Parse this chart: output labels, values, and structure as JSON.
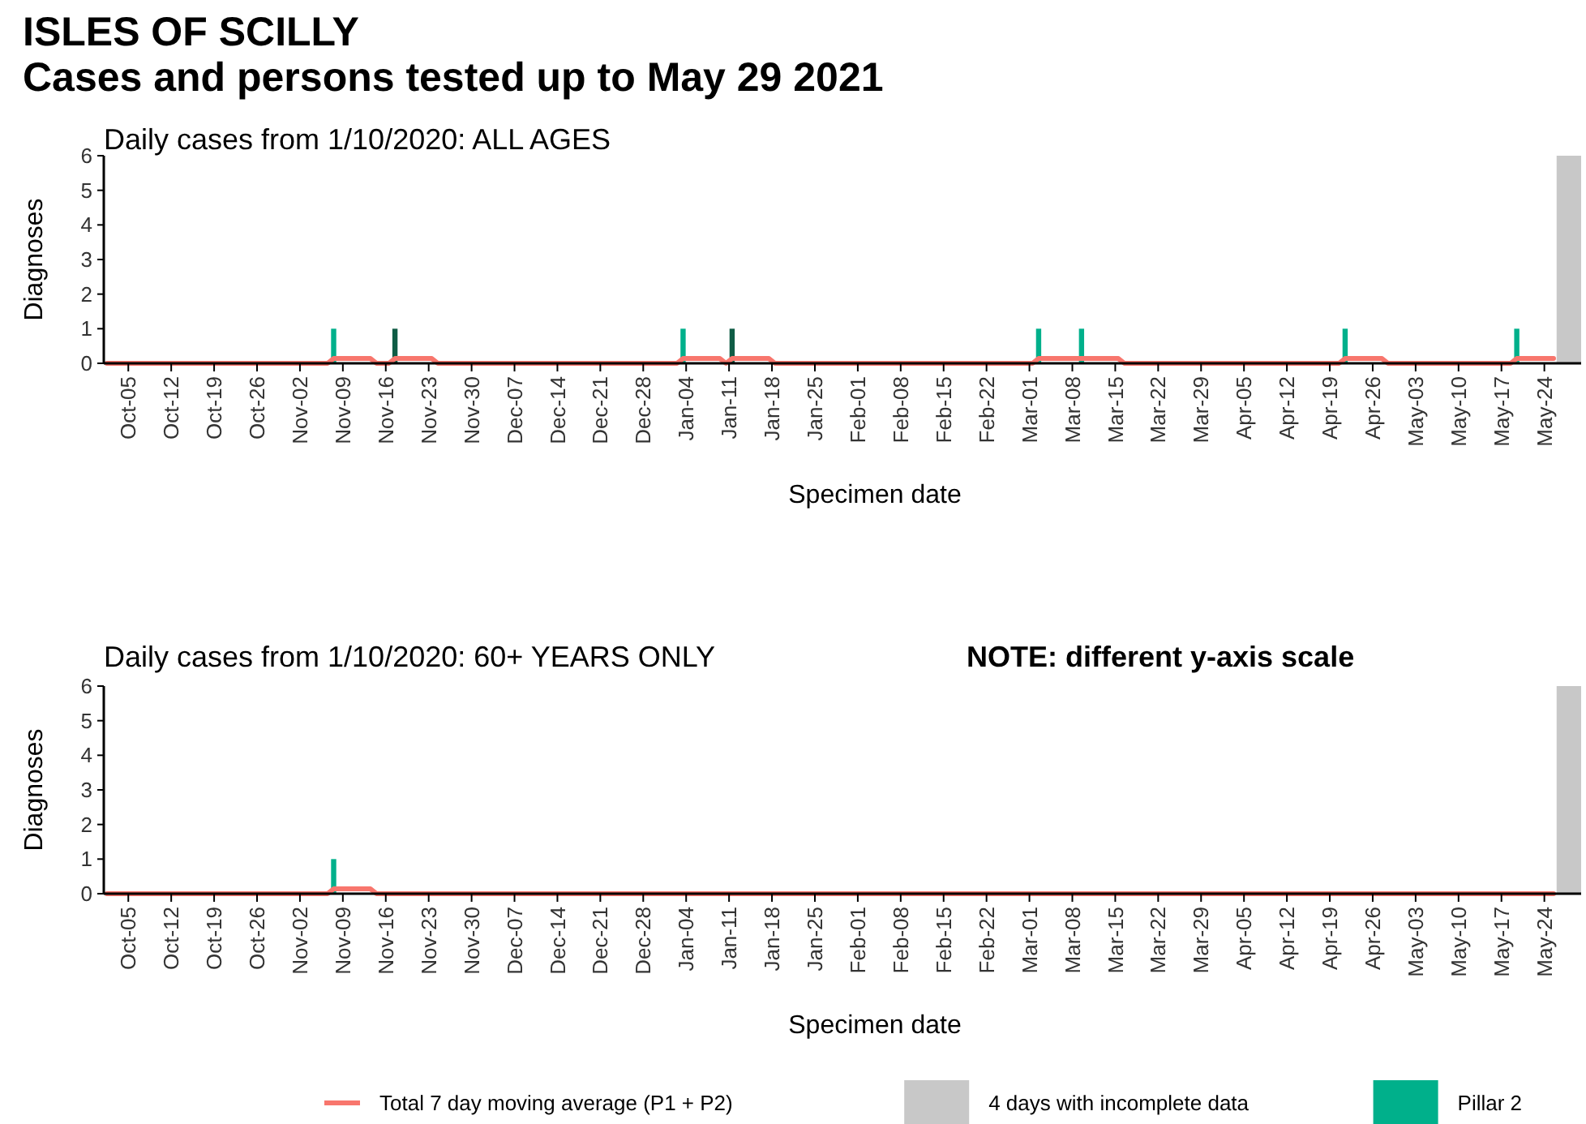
{
  "chart_data": [
    {
      "type": "bar",
      "title": "ISLES OF SCILLY",
      "subtitle": "Cases and persons tested up to May 29 2021",
      "annotations": [
        "Daily cases from 1/10/2020: ALL AGES"
      ],
      "xlabel": "Specimen date",
      "ylabel": "Diagnoses",
      "xlim": [
        "2020-10-01",
        "2021-05-30"
      ],
      "ylim": [
        0,
        6
      ],
      "yticks": [
        0,
        1,
        2,
        3,
        4,
        5,
        6
      ],
      "xticks": [
        {
          "value": "2020-10-05",
          "label": "Oct-05"
        },
        {
          "value": "2020-10-12",
          "label": "Oct-12"
        },
        {
          "value": "2020-10-19",
          "label": "Oct-19"
        },
        {
          "value": "2020-10-26",
          "label": "Oct-26"
        },
        {
          "value": "2020-11-02",
          "label": "Nov-02"
        },
        {
          "value": "2020-11-09",
          "label": "Nov-09"
        },
        {
          "value": "2020-11-16",
          "label": "Nov-16"
        },
        {
          "value": "2020-11-23",
          "label": "Nov-23"
        },
        {
          "value": "2020-11-30",
          "label": "Nov-30"
        },
        {
          "value": "2020-12-07",
          "label": "Dec-07"
        },
        {
          "value": "2020-12-14",
          "label": "Dec-14"
        },
        {
          "value": "2020-12-21",
          "label": "Dec-21"
        },
        {
          "value": "2020-12-28",
          "label": "Dec-28"
        },
        {
          "value": "2021-01-04",
          "label": "Jan-04"
        },
        {
          "value": "2021-01-11",
          "label": "Jan-11"
        },
        {
          "value": "2021-01-18",
          "label": "Jan-18"
        },
        {
          "value": "2021-01-25",
          "label": "Jan-25"
        },
        {
          "value": "2021-02-01",
          "label": "Feb-01"
        },
        {
          "value": "2021-02-08",
          "label": "Feb-08"
        },
        {
          "value": "2021-02-15",
          "label": "Feb-15"
        },
        {
          "value": "2021-02-22",
          "label": "Feb-22"
        },
        {
          "value": "2021-03-01",
          "label": "Mar-01"
        },
        {
          "value": "2021-03-08",
          "label": "Mar-08"
        },
        {
          "value": "2021-03-15",
          "label": "Mar-15"
        },
        {
          "value": "2021-03-22",
          "label": "Mar-22"
        },
        {
          "value": "2021-03-29",
          "label": "Mar-29"
        },
        {
          "value": "2021-04-05",
          "label": "Apr-05"
        },
        {
          "value": "2021-04-12",
          "label": "Apr-12"
        },
        {
          "value": "2021-04-19",
          "label": "Apr-19"
        },
        {
          "value": "2021-04-26",
          "label": "Apr-26"
        },
        {
          "value": "2021-05-03",
          "label": "May-03"
        },
        {
          "value": "2021-05-10",
          "label": "May-10"
        },
        {
          "value": "2021-05-17",
          "label": "May-17"
        },
        {
          "value": "2021-05-24",
          "label": "May-24"
        }
      ],
      "bands": [
        {
          "axis": "x",
          "from": "2021-05-26",
          "to": "2021-05-30",
          "label": "4 days with incomplete data",
          "color": "#c8c8c8"
        }
      ],
      "series": [
        {
          "type": "line",
          "name": "Total 7 day moving average (P1 + P2)",
          "color": "#f8766d",
          "x": [
            "2020-10-01",
            "2020-11-06",
            "2020-11-07",
            "2020-11-13",
            "2020-11-14",
            "2020-11-16",
            "2020-11-17",
            "2020-11-23",
            "2020-11-24",
            "2021-01-02",
            "2021-01-03",
            "2021-01-09",
            "2021-01-10",
            "2021-01-11",
            "2021-01-17",
            "2021-01-18",
            "2021-03-01",
            "2021-03-02",
            "2021-03-15",
            "2021-03-16",
            "2021-04-20",
            "2021-04-21",
            "2021-04-27",
            "2021-04-28",
            "2021-05-18",
            "2021-05-19",
            "2021-05-25"
          ],
          "values": [
            0,
            0,
            0.14,
            0.14,
            0,
            0,
            0.14,
            0.14,
            0,
            0,
            0.14,
            0.14,
            0,
            0.14,
            0.14,
            0,
            0,
            0.14,
            0.14,
            0,
            0,
            0.14,
            0.14,
            0,
            0,
            0.14,
            0.14
          ]
        },
        {
          "name": "Pillar 2",
          "color": "#00b08b",
          "x": [
            "2020-11-07",
            "2021-01-03",
            "2021-03-02",
            "2021-03-09",
            "2021-04-21",
            "2021-05-19"
          ],
          "values": [
            1,
            1,
            1,
            1,
            1,
            1
          ]
        },
        {
          "color": "#0f5c45",
          "x": [
            "2020-11-17",
            "2021-01-11"
          ],
          "values": [
            1,
            1
          ]
        }
      ],
      "legend": "bottom"
    },
    {
      "type": "bar",
      "title": "Daily cases from 1/10/2020: 60+ YEARS ONLY",
      "annotations": [
        "NOTE: different y-axis scale"
      ],
      "xlabel": "Specimen date",
      "ylabel": "Diagnoses",
      "xlim": [
        "2020-10-01",
        "2021-05-30"
      ],
      "ylim": [
        0,
        6
      ],
      "yticks": [
        0,
        1,
        2,
        3,
        4,
        5,
        6
      ],
      "xticks": [
        {
          "value": "2020-10-05",
          "label": "Oct-05"
        },
        {
          "value": "2020-10-12",
          "label": "Oct-12"
        },
        {
          "value": "2020-10-19",
          "label": "Oct-19"
        },
        {
          "value": "2020-10-26",
          "label": "Oct-26"
        },
        {
          "value": "2020-11-02",
          "label": "Nov-02"
        },
        {
          "value": "2020-11-09",
          "label": "Nov-09"
        },
        {
          "value": "2020-11-16",
          "label": "Nov-16"
        },
        {
          "value": "2020-11-23",
          "label": "Nov-23"
        },
        {
          "value": "2020-11-30",
          "label": "Nov-30"
        },
        {
          "value": "2020-12-07",
          "label": "Dec-07"
        },
        {
          "value": "2020-12-14",
          "label": "Dec-14"
        },
        {
          "value": "2020-12-21",
          "label": "Dec-21"
        },
        {
          "value": "2020-12-28",
          "label": "Dec-28"
        },
        {
          "value": "2021-01-04",
          "label": "Jan-04"
        },
        {
          "value": "2021-01-11",
          "label": "Jan-11"
        },
        {
          "value": "2021-01-18",
          "label": "Jan-18"
        },
        {
          "value": "2021-01-25",
          "label": "Jan-25"
        },
        {
          "value": "2021-02-01",
          "label": "Feb-01"
        },
        {
          "value": "2021-02-08",
          "label": "Feb-08"
        },
        {
          "value": "2021-02-15",
          "label": "Feb-15"
        },
        {
          "value": "2021-02-22",
          "label": "Feb-22"
        },
        {
          "value": "2021-03-01",
          "label": "Mar-01"
        },
        {
          "value": "2021-03-08",
          "label": "Mar-08"
        },
        {
          "value": "2021-03-15",
          "label": "Mar-15"
        },
        {
          "value": "2021-03-22",
          "label": "Mar-22"
        },
        {
          "value": "2021-03-29",
          "label": "Mar-29"
        },
        {
          "value": "2021-04-05",
          "label": "Apr-05"
        },
        {
          "value": "2021-04-12",
          "label": "Apr-12"
        },
        {
          "value": "2021-04-19",
          "label": "Apr-19"
        },
        {
          "value": "2021-04-26",
          "label": "Apr-26"
        },
        {
          "value": "2021-05-03",
          "label": "May-03"
        },
        {
          "value": "2021-05-10",
          "label": "May-10"
        },
        {
          "value": "2021-05-17",
          "label": "May-17"
        },
        {
          "value": "2021-05-24",
          "label": "May-24"
        }
      ],
      "bands": [
        {
          "axis": "x",
          "from": "2021-05-26",
          "to": "2021-05-30",
          "color": "#c8c8c8"
        }
      ],
      "series": [
        {
          "type": "line",
          "color": "#f8766d",
          "x": [
            "2020-10-01",
            "2020-11-06",
            "2020-11-07",
            "2020-11-13",
            "2020-11-14",
            "2021-05-25"
          ],
          "values": [
            0,
            0,
            0.14,
            0.14,
            0,
            0
          ]
        },
        {
          "color": "#00b08b",
          "x": [
            "2020-11-07"
          ],
          "values": [
            1
          ]
        }
      ]
    }
  ]
}
